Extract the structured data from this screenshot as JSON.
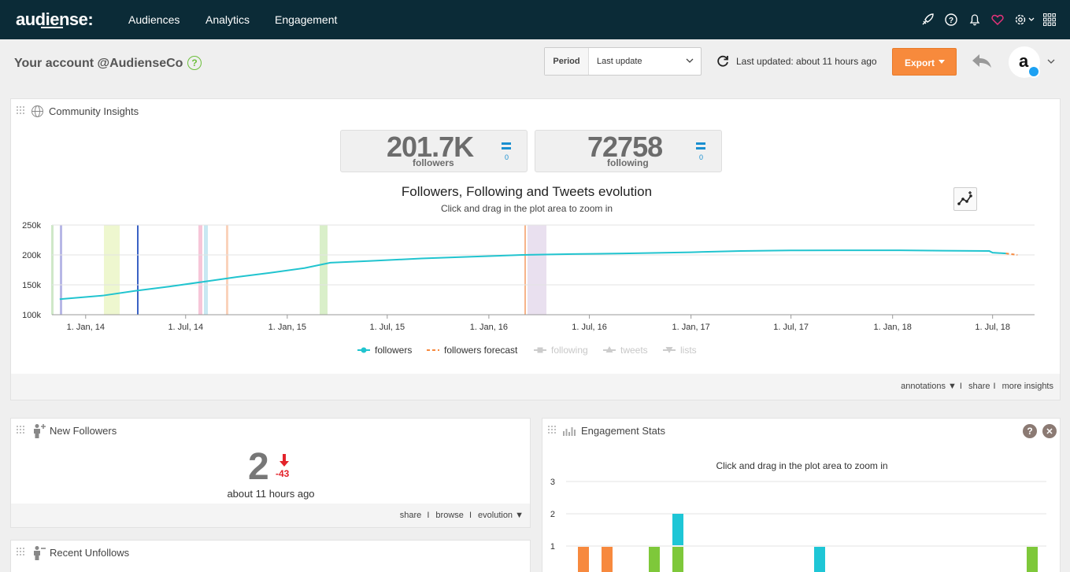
{
  "nav": {
    "logo": "audiense:",
    "items": [
      "Audiences",
      "Analytics",
      "Engagement"
    ]
  },
  "header": {
    "account_title": "Your account @AudienseCo",
    "help": "?",
    "period_label": "Period",
    "period_value": "Last update",
    "last_updated": "Last updated: about 11 hours ago",
    "export_label": "Export",
    "avatar_letter": "a"
  },
  "community": {
    "title": "Community Insights",
    "stats": [
      {
        "value": "201.7K",
        "label": "followers",
        "delta": "0"
      },
      {
        "value": "72758",
        "label": "following",
        "delta": "0"
      }
    ],
    "footer": {
      "annotations": "annotations ▼",
      "share": "share",
      "more": "more insights"
    }
  },
  "chart_data": [
    {
      "type": "line",
      "title": "Followers, Following and Tweets evolution",
      "subtitle": "Click and drag in the plot area to zoom in",
      "x_tick_labels": [
        "1. Jan, 14",
        "1. Jul, 14",
        "1. Jan, 15",
        "1. Jul, 15",
        "1. Jan, 16",
        "1. Jul, 16",
        "1. Jan, 17",
        "1. Jul, 17",
        "1. Jan, 18",
        "1. Jul, 18"
      ],
      "y_tick_labels": [
        "250k",
        "200k",
        "150k",
        "100k"
      ],
      "ylim": [
        100000,
        250000
      ],
      "x_start": "2013-11-01",
      "x_end": "2018-09-15",
      "series": [
        {
          "name": "followers",
          "color": "#21c4cf",
          "dash": false,
          "points": [
            [
              "2013-11-15",
              126000
            ],
            [
              "2014-02-01",
              132000
            ],
            [
              "2014-04-01",
              140000
            ],
            [
              "2014-06-01",
              147000
            ],
            [
              "2014-08-01",
              155000
            ],
            [
              "2014-10-01",
              163000
            ],
            [
              "2014-12-01",
              170000
            ],
            [
              "2015-02-01",
              178000
            ],
            [
              "2015-03-20",
              187000
            ],
            [
              "2015-06-01",
              190000
            ],
            [
              "2015-09-01",
              194000
            ],
            [
              "2015-12-01",
              197000
            ],
            [
              "2016-03-01",
              200000
            ],
            [
              "2016-06-01",
              201500
            ],
            [
              "2016-09-01",
              202500
            ],
            [
              "2017-01-01",
              204500
            ],
            [
              "2017-04-01",
              206500
            ],
            [
              "2017-07-01",
              207500
            ],
            [
              "2017-10-01",
              207800
            ],
            [
              "2018-01-01",
              207800
            ],
            [
              "2018-04-01",
              207000
            ],
            [
              "2018-06-25",
              206500
            ],
            [
              "2018-07-01",
              203800
            ],
            [
              "2018-07-25",
              202500
            ]
          ]
        },
        {
          "name": "followers forecast",
          "color": "#f7893e",
          "dash": true,
          "points": [
            [
              "2018-07-25",
              202500
            ],
            [
              "2018-08-15",
              200000
            ]
          ]
        },
        {
          "name": "following",
          "color": "#bbbbbb",
          "dash": false,
          "points": []
        },
        {
          "name": "tweets",
          "color": "#bbbbbb",
          "dash": false,
          "points": []
        },
        {
          "name": "lists",
          "color": "#bbbbbb",
          "dash": false,
          "points": []
        }
      ]
    },
    {
      "type": "bar",
      "title": "",
      "subtitle": "Click and drag in the plot area to zoom in",
      "y_tick_labels": [
        "3",
        "2",
        "1"
      ],
      "ylim": [
        0,
        3
      ],
      "bars": [
        {
          "index": 0,
          "value": 1,
          "color": "#f7893e"
        },
        {
          "index": 1,
          "value": 1,
          "color": "#f7893e"
        },
        {
          "index": 3,
          "value": 1,
          "color": "#7ec83a"
        },
        {
          "index": 4,
          "value": 1,
          "color": "#7ec83a"
        },
        {
          "index": 4,
          "value": 1,
          "base": 1,
          "color": "#1ec6d6"
        },
        {
          "index": 10,
          "value": 1,
          "color": "#1ec6d6"
        },
        {
          "index": 19,
          "value": 1,
          "color": "#7ec83a"
        }
      ]
    }
  ],
  "new_followers": {
    "title": "New Followers",
    "count": "2",
    "delta": "-43",
    "time": "about 11 hours ago",
    "footer": {
      "share": "share",
      "browse": "browse",
      "evolution": "evolution ▼"
    }
  },
  "engagement": {
    "title": "Engagement Stats",
    "help": "?",
    "close": "✕"
  },
  "recent_unfollows": {
    "title": "Recent Unfollows"
  }
}
